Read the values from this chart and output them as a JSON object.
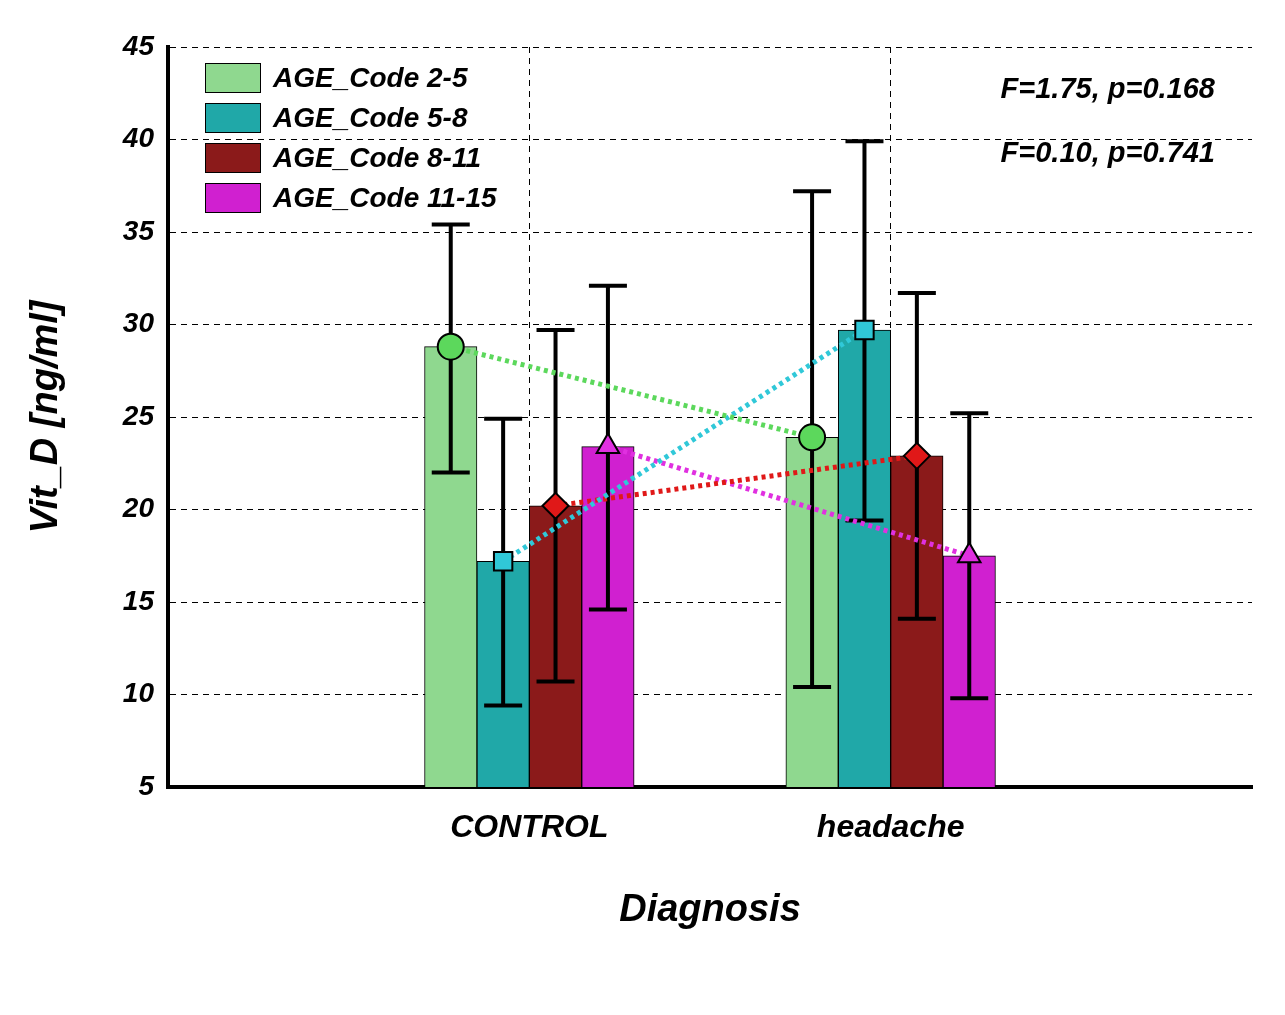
{
  "chart_data": {
    "type": "bar",
    "xlabel": "Diagnosis",
    "ylabel": "Vit_D [ng/ml]",
    "categories": [
      "CONTROL",
      "headache"
    ],
    "series": [
      {
        "name": "AGE_Code 2-5",
        "color": "#8fd88f",
        "values": [
          28.8,
          23.9
        ],
        "errors": [
          [
            22.0,
            35.4
          ],
          [
            10.4,
            37.2
          ]
        ]
      },
      {
        "name": "AGE_Code 5-8",
        "color": "#20a8a8",
        "values": [
          17.2,
          29.7
        ],
        "errors": [
          [
            9.4,
            24.9
          ],
          [
            19.4,
            39.9
          ]
        ]
      },
      {
        "name": "AGE_Code 8-11",
        "color": "#8b1a1a",
        "values": [
          20.2,
          22.9
        ],
        "errors": [
          [
            10.7,
            29.7
          ],
          [
            14.1,
            31.7
          ]
        ]
      },
      {
        "name": "AGE_Code 11-15",
        "color": "#d020d0",
        "values": [
          23.4,
          17.5
        ],
        "errors": [
          [
            14.6,
            32.1
          ],
          [
            9.8,
            25.2
          ]
        ]
      },
      {
        "type": "line",
        "color": "#5cd85c",
        "values": [
          28.8,
          23.9
        ],
        "marker": "circle",
        "line_style": "dotted"
      },
      {
        "type": "line",
        "color": "#30c8d8",
        "values": [
          17.2,
          29.7
        ],
        "marker": "square",
        "line_style": "dotted"
      },
      {
        "type": "line",
        "color": "#e01818",
        "values": [
          20.2,
          22.9
        ],
        "marker": "diamond",
        "line_style": "dotted"
      },
      {
        "type": "line",
        "color": "#e030e0",
        "values": [
          23.4,
          17.5
        ],
        "marker": "triangle",
        "line_style": "dotted"
      }
    ],
    "ylim": [
      5,
      45
    ],
    "yticks": [
      5,
      10,
      15,
      20,
      25,
      30,
      35,
      40,
      45
    ],
    "grid": true,
    "legend": "top left",
    "annotations": [
      "F=1.75, p=0.168",
      "F=0.10, p=0.741"
    ]
  }
}
